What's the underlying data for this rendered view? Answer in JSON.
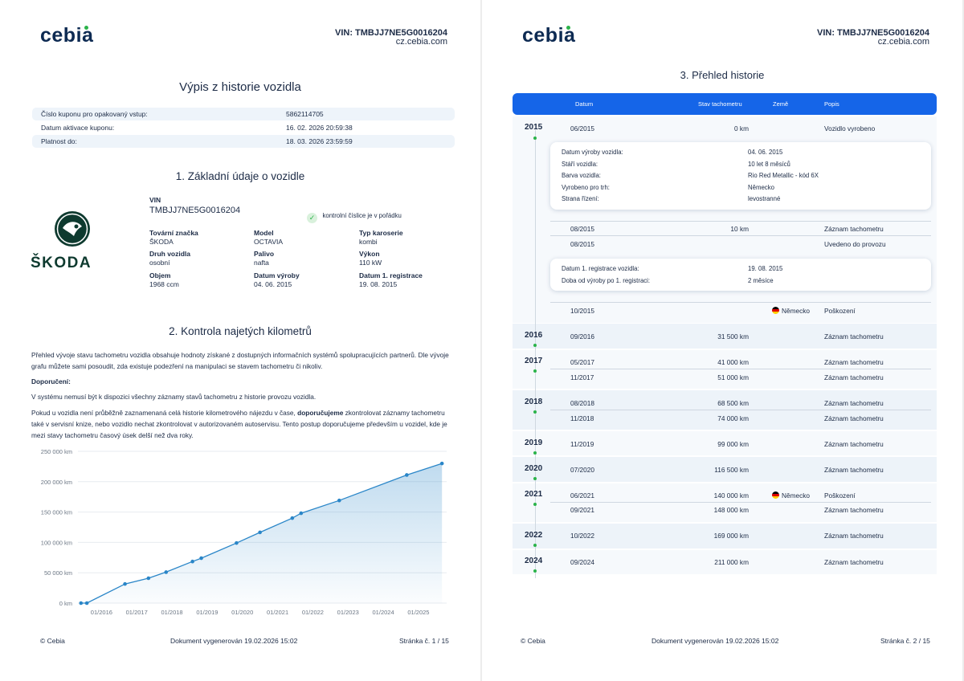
{
  "header": {
    "logo": "cebia",
    "vin_label": "VIN: TMBJJ7NE5G0016204",
    "site": "cz.cebia.com"
  },
  "page1": {
    "title": "Výpis z historie vozidla",
    "coupon": [
      {
        "key": "Číslo kuponu pro opakovaný vstup:",
        "value": "5862114705"
      },
      {
        "key": "Datum aktivace kuponu:",
        "value": "16. 02. 2026 20:59:38"
      },
      {
        "key": "Platnost do:",
        "value": "18. 03. 2026 23:59:59"
      }
    ],
    "section1_title": "1. Základní údaje o vozidle",
    "brand_wordmark": "ŠKODA",
    "vin_heading": "VIN",
    "vin_value": "TMBJJ7NE5G0016204",
    "vin_check": "kontrolní číslice je v pořádku",
    "vehicle_fields": [
      {
        "label": "Tovární značka",
        "value": "ŠKODA"
      },
      {
        "label": "Model",
        "value": "OCTAVIA"
      },
      {
        "label": "Typ karoserie",
        "value": "kombi"
      },
      {
        "label": "Druh vozidla",
        "value": "osobní"
      },
      {
        "label": "Palivo",
        "value": "nafta"
      },
      {
        "label": "Výkon",
        "value": "110 kW"
      },
      {
        "label": "Objem",
        "value": "1968 ccm"
      },
      {
        "label": "Datum výroby",
        "value": "04. 06. 2015"
      },
      {
        "label": "Datum 1. registrace",
        "value": "19. 08. 2015"
      }
    ],
    "section2_title": "2. Kontrola najetých kilometrů",
    "para1": "Přehled vývoje stavu tachometru vozidla obsahuje hodnoty získané z dostupných informačních systémů spolupracujících partnerů. Dle vývoje grafu můžete sami posoudit, zda existuje podezření na manipulaci se stavem tachometru či nikoliv.",
    "recommend_title": "Doporučení:",
    "para2": "V systému nemusí být k dispozici všechny záznamy stavů tachometru z historie provozu vozidla.",
    "para3_a": "Pokud u vozidla není průběžně zaznamenaná celá historie kilometrového nájezdu v čase, ",
    "para3_b": "doporučujeme",
    "para3_c": " zkontrolovat záznamy tachometru také v servisní knize, nebo vozidlo nechat zkontrolovat v autorizovaném autoservisu. Tento postup doporučujeme především u vozidel, kde je mezi stavy tachometru časový úsek delší než dva roky.",
    "footer_left": "© Cebia",
    "footer_mid": "Dokument vygenerován 19.02.2026 15:02",
    "footer_right": "Stránka č. 1 / 15"
  },
  "chart_data": {
    "type": "area",
    "title": "",
    "xlabel": "",
    "ylabel": "",
    "ylim": [
      0,
      250000
    ],
    "y_ticks": [
      "0 km",
      "50 000 km",
      "100 000 km",
      "150 000 km",
      "200 000 km",
      "250 000 km"
    ],
    "x_ticks": [
      "01/2016",
      "01/2017",
      "01/2018",
      "01/2019",
      "01/2020",
      "01/2021",
      "01/2022",
      "01/2023",
      "01/2024",
      "01/2025"
    ],
    "grid": true,
    "color": "#2a86c8",
    "series": [
      {
        "points": [
          {
            "x": "2015-06",
            "y": 0
          },
          {
            "x": "2015-08",
            "y": 10
          },
          {
            "x": "2016-09",
            "y": 31500
          },
          {
            "x": "2017-05",
            "y": 41000
          },
          {
            "x": "2017-11",
            "y": 51000
          },
          {
            "x": "2018-08",
            "y": 68500
          },
          {
            "x": "2018-11",
            "y": 74000
          },
          {
            "x": "2019-11",
            "y": 99000
          },
          {
            "x": "2020-07",
            "y": 116500
          },
          {
            "x": "2021-06",
            "y": 140000
          },
          {
            "x": "2021-09",
            "y": 148000
          },
          {
            "x": "2022-10",
            "y": 169000
          },
          {
            "x": "2024-09",
            "y": 211000
          },
          {
            "x": "2025-09",
            "y": 230000
          }
        ]
      }
    ]
  },
  "page2": {
    "title": "3. Přehled historie",
    "columns": [
      "Datum",
      "Stav tachometru",
      "Země",
      "Popis"
    ],
    "card1": [
      {
        "key": "Datum výroby vozidla:",
        "value": "04. 06. 2015"
      },
      {
        "key": "Stáří vozidla:",
        "value": "10 let 8 měsíců"
      },
      {
        "key": "Barva vozidla:",
        "value": "Rio Red Metallic - kód 6X"
      },
      {
        "key": "Vyrobeno pro trh:",
        "value": "Německo"
      },
      {
        "key": "Strana řízení:",
        "value": "levostranné"
      }
    ],
    "card2": [
      {
        "key": "Datum 1. registrace vozidla:",
        "value": "19. 08. 2015"
      },
      {
        "key": "Doba od výroby po 1. registraci:",
        "value": "2 měsíce"
      }
    ],
    "years": [
      "2015",
      "2016",
      "2017",
      "2018",
      "2019",
      "2020",
      "2021",
      "2022",
      "2024"
    ],
    "rows": [
      {
        "date": "06/2015",
        "km": "0 km",
        "country": "",
        "desc": "Vozidlo vyrobeno"
      },
      {
        "date": "08/2015",
        "km": "10 km",
        "country": "",
        "desc": "Záznam tachometru"
      },
      {
        "date": "08/2015",
        "km": "",
        "country": "",
        "desc": "Uvedeno do provozu"
      },
      {
        "date": "10/2015",
        "km": "",
        "country": "Německo",
        "desc": "Poškození"
      },
      {
        "date": "09/2016",
        "km": "31 500 km",
        "country": "",
        "desc": "Záznam tachometru"
      },
      {
        "date": "05/2017",
        "km": "41 000 km",
        "country": "",
        "desc": "Záznam tachometru"
      },
      {
        "date": "11/2017",
        "km": "51 000 km",
        "country": "",
        "desc": "Záznam tachometru"
      },
      {
        "date": "08/2018",
        "km": "68 500 km",
        "country": "",
        "desc": "Záznam tachometru"
      },
      {
        "date": "11/2018",
        "km": "74 000 km",
        "country": "",
        "desc": "Záznam tachometru"
      },
      {
        "date": "11/2019",
        "km": "99 000 km",
        "country": "",
        "desc": "Záznam tachometru"
      },
      {
        "date": "07/2020",
        "km": "116 500 km",
        "country": "",
        "desc": "Záznam tachometru"
      },
      {
        "date": "06/2021",
        "km": "140 000 km",
        "country": "Německo",
        "desc": "Poškození"
      },
      {
        "date": "09/2021",
        "km": "148 000 km",
        "country": "",
        "desc": "Záznam tachometru"
      },
      {
        "date": "10/2022",
        "km": "169 000 km",
        "country": "",
        "desc": "Záznam tachometru"
      },
      {
        "date": "09/2024",
        "km": "211 000 km",
        "country": "",
        "desc": "Záznam tachometru"
      }
    ],
    "footer_left": "© Cebia",
    "footer_mid": "Dokument vygenerován 19.02.2026 15:02",
    "footer_right": "Stránka č. 2 / 15"
  }
}
